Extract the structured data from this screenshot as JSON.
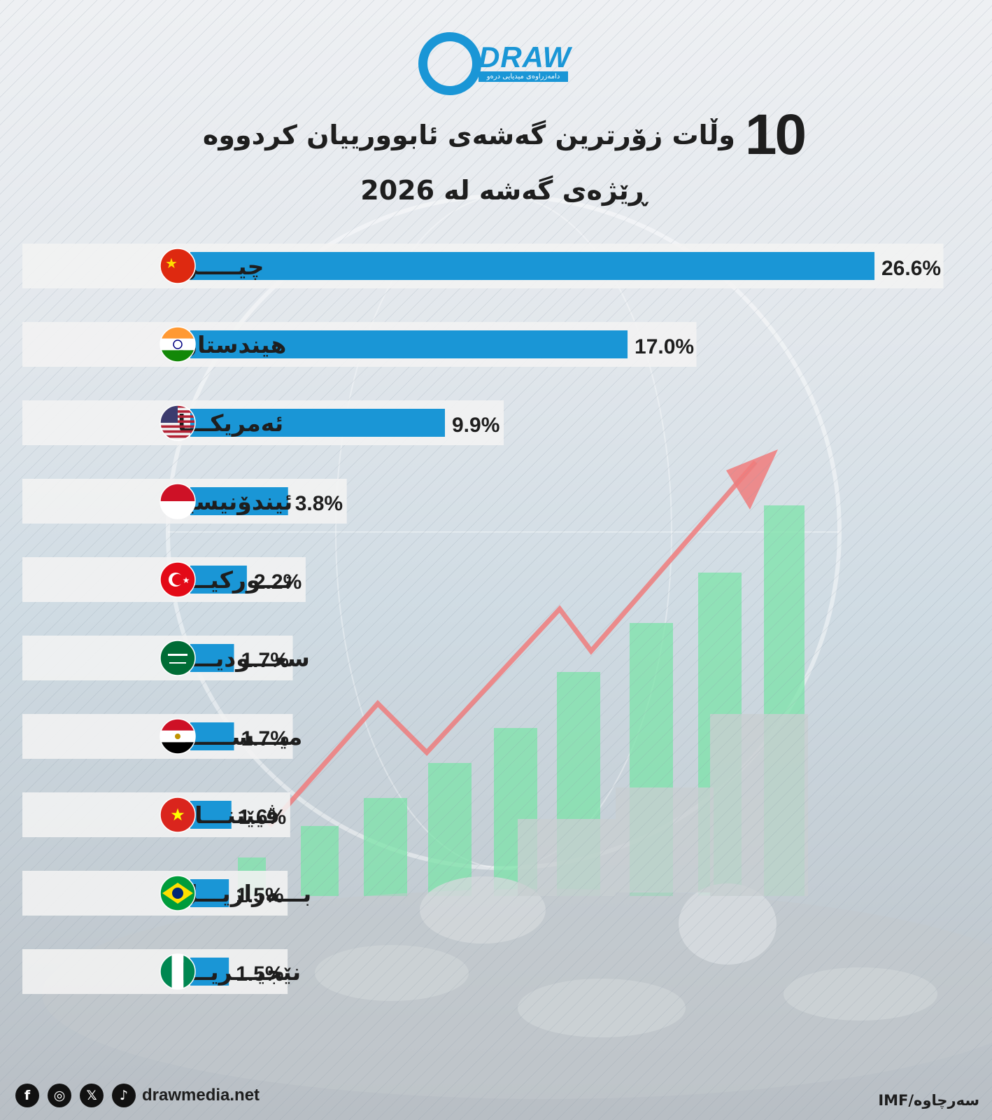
{
  "brand": {
    "name": "DRAW",
    "tagline": "دامەزراوەی میدیایی درەو",
    "accent": "#1a96d6"
  },
  "title": {
    "number": "10",
    "text": "وڵات زۆرترین گەشەی ئابوورییان کردووە",
    "subtitle": "ڕێژەی گەشە لە 2026"
  },
  "chart_data": {
    "type": "bar",
    "orientation": "horizontal",
    "bar_color": "#1a96d6",
    "categories": [
      "چیـــــن",
      "هیندستان",
      "ئەمریکـــا",
      "ئیندۆنیسیا",
      "تـــورکیـــا",
      "سعـــودیـــە",
      "میـــســـــر",
      "ڤیێتنـــام",
      "بـــەرازیـــل",
      "نێجیـــریـــا"
    ],
    "values": [
      26.6,
      17.0,
      9.9,
      3.8,
      2.2,
      1.7,
      1.7,
      1.6,
      1.5,
      1.5
    ],
    "value_labels": [
      "26.6%",
      "17.0%",
      "9.9%",
      "3.8%",
      "2.2%",
      "1.7%",
      "1.7%",
      "1.6%",
      "1.5%",
      "1.5%"
    ],
    "flags": [
      "china-flag-icon",
      "india-flag-icon",
      "usa-flag-icon",
      "indonesia-flag-icon",
      "turkey-flag-icon",
      "saudi-arabia-flag-icon",
      "egypt-flag-icon",
      "vietnam-flag-icon",
      "brazil-flag-icon",
      "nigeria-flag-icon"
    ]
  },
  "footer": {
    "socials": [
      "facebook-icon",
      "instagram-icon",
      "x-icon",
      "tiktok-icon"
    ],
    "social_glyphs": [
      "f",
      "◎",
      "𝕏",
      "♪"
    ],
    "website": "drawmedia.net",
    "source": "سەرچاوە/IMF"
  }
}
